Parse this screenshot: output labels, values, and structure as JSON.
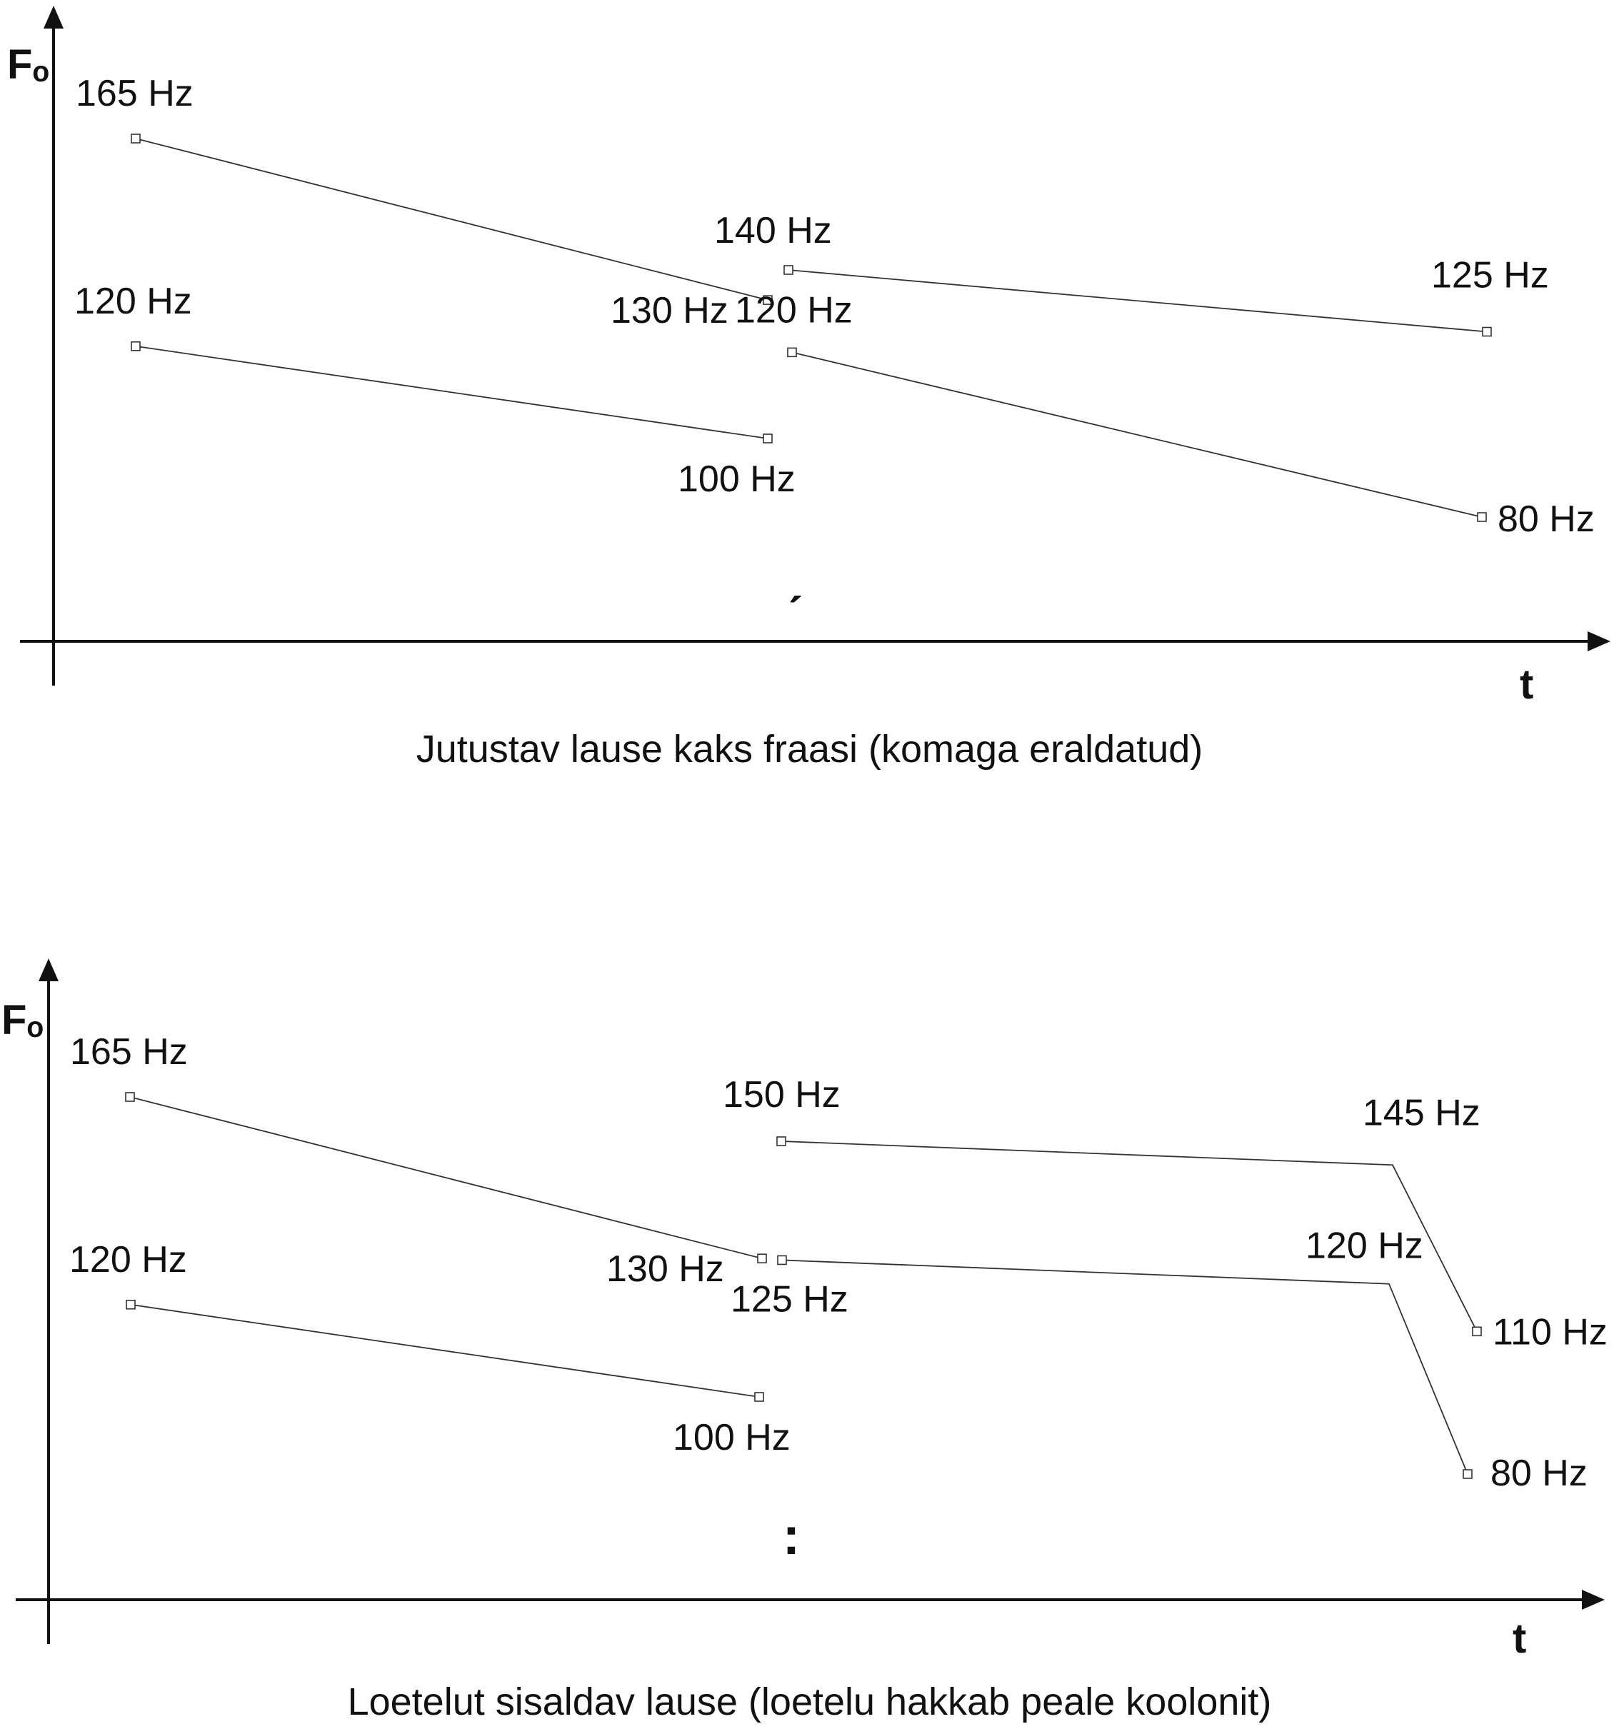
{
  "chart_data": [
    {
      "type": "line",
      "title": "Jutustav lause kaks fraasi (komaga eraldatud)",
      "ylabel": "Fₒ",
      "xlabel": "t",
      "boundary_mark": "ˏ",
      "y_unit": "Hz",
      "grid": false,
      "series": [
        {
          "points": [
            {
              "t": 1,
              "f": 165,
              "label": "165 Hz"
            },
            {
              "t": 2,
              "f": 130,
              "label": "130 Hz"
            }
          ]
        },
        {
          "points": [
            {
              "t": 1,
              "f": 120,
              "label": "120 Hz"
            },
            {
              "t": 2,
              "f": 100,
              "label": "100 Hz"
            }
          ]
        },
        {
          "points": [
            {
              "t": 3,
              "f": 140,
              "label": "140 Hz"
            },
            {
              "t": 4,
              "f": 125,
              "label": "125 Hz"
            }
          ]
        },
        {
          "points": [
            {
              "t": 3,
              "f": 120,
              "label": "120 Hz"
            },
            {
              "t": 4,
              "f": 80,
              "label": "80 Hz"
            }
          ]
        }
      ]
    },
    {
      "type": "line",
      "title": "Loetelut sisaldav lause (loetelu hakkab peale koolonit)",
      "ylabel": "Fₒ",
      "xlabel": "t",
      "boundary_mark": ":",
      "y_unit": "Hz",
      "grid": false,
      "series": [
        {
          "points": [
            {
              "t": 1,
              "f": 165,
              "label": "165 Hz"
            },
            {
              "t": 2,
              "f": 130,
              "label": "130 Hz"
            }
          ]
        },
        {
          "points": [
            {
              "t": 1,
              "f": 120,
              "label": "120 Hz"
            },
            {
              "t": 2,
              "f": 100,
              "label": "100 Hz"
            }
          ]
        },
        {
          "points": [
            {
              "t": 3,
              "f": 150,
              "label": "150 Hz"
            },
            {
              "t": 4,
              "f": 145,
              "label": "145 Hz",
              "marker": false
            },
            {
              "t": 5,
              "f": 110,
              "label": "110 Hz"
            }
          ]
        },
        {
          "points": [
            {
              "t": 3,
              "f": 125,
              "label": "125 Hz"
            },
            {
              "t": 4,
              "f": 120,
              "label": "120 Hz",
              "marker": false
            },
            {
              "t": 5,
              "f": 80,
              "label": "80 Hz"
            }
          ]
        }
      ]
    }
  ]
}
